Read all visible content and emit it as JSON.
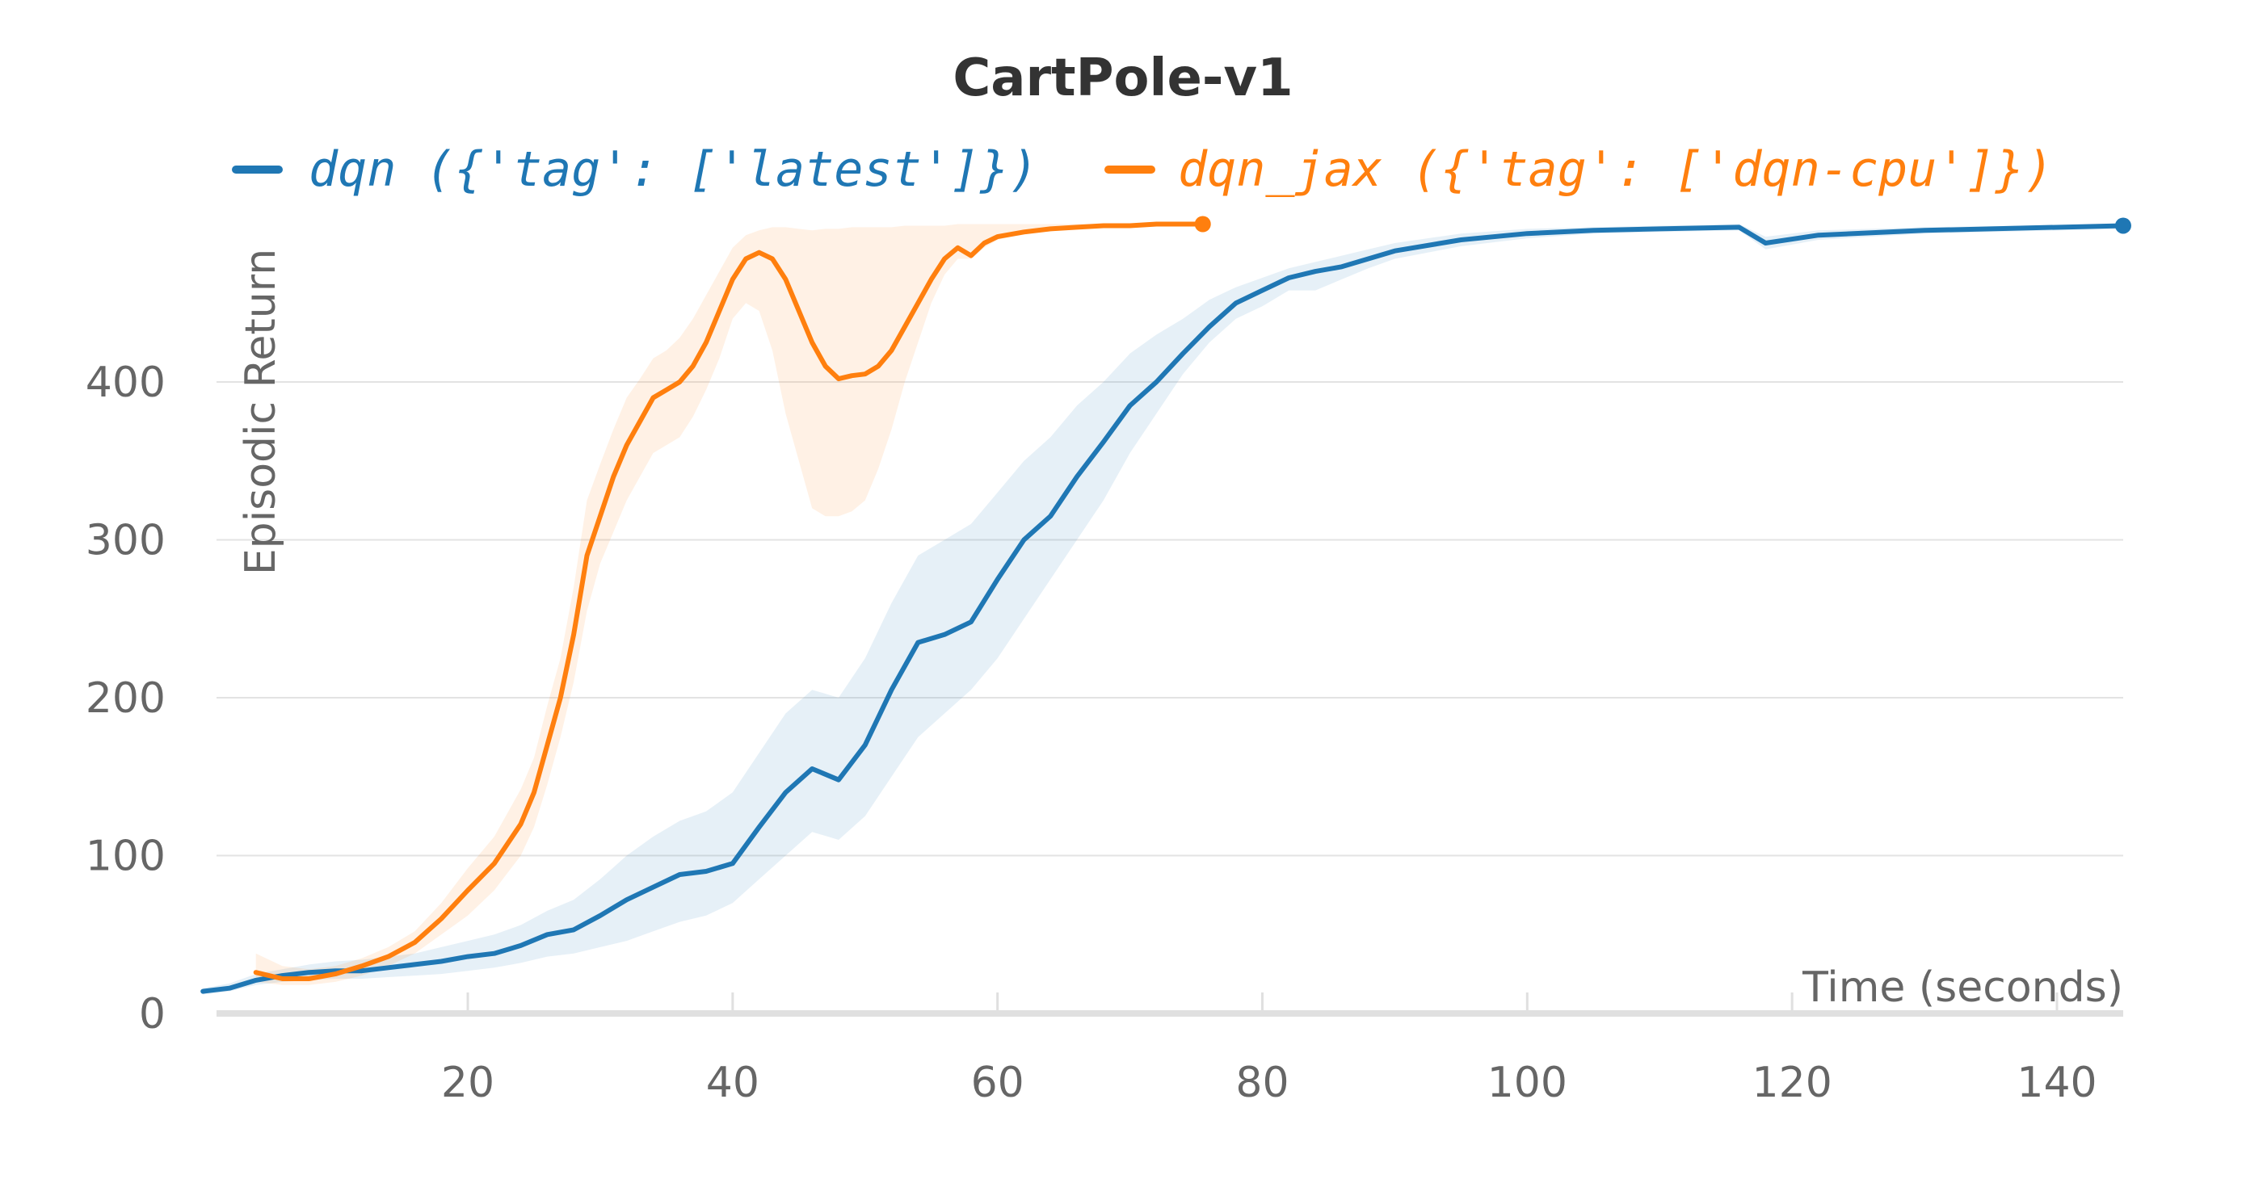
{
  "chart_data": {
    "type": "line",
    "title": "CartPole-v1",
    "xlabel": "Time (seconds)",
    "ylabel": "Episodic Return",
    "xlim": [
      0,
      145
    ],
    "ylim": [
      0,
      500
    ],
    "xticks": [
      20,
      40,
      60,
      80,
      100,
      120,
      140
    ],
    "yticks": [
      0,
      100,
      200,
      300,
      400
    ],
    "grid": true,
    "legend_position": "top",
    "series": [
      {
        "name": "dqn ({'tag': ['latest']})",
        "color": "#1f77b4",
        "band_color": "#1f77b4",
        "x": [
          0,
          2,
          4,
          6,
          8,
          10,
          12,
          14,
          16,
          18,
          20,
          22,
          24,
          26,
          28,
          30,
          32,
          34,
          36,
          38,
          40,
          42,
          44,
          46,
          48,
          50,
          52,
          54,
          56,
          58,
          60,
          62,
          64,
          66,
          68,
          70,
          72,
          74,
          76,
          78,
          80,
          82,
          84,
          86,
          88,
          90,
          95,
          100,
          105,
          110,
          116,
          118,
          122,
          130,
          145
        ],
        "y": [
          14,
          16,
          21,
          24,
          26,
          27,
          27,
          29,
          31,
          33,
          36,
          38,
          43,
          50,
          53,
          62,
          72,
          80,
          88,
          90,
          95,
          118,
          140,
          155,
          148,
          170,
          205,
          235,
          240,
          248,
          275,
          300,
          315,
          340,
          362,
          385,
          400,
          418,
          435,
          450,
          458,
          466,
          470,
          473,
          478,
          483,
          490,
          494,
          496,
          497,
          498,
          488,
          493,
          496,
          499
        ],
        "lower": [
          12,
          14,
          18,
          20,
          21,
          22,
          22,
          23,
          24,
          25,
          27,
          29,
          32,
          36,
          38,
          42,
          46,
          52,
          58,
          62,
          70,
          85,
          100,
          115,
          110,
          125,
          150,
          175,
          190,
          205,
          225,
          250,
          275,
          300,
          325,
          355,
          380,
          405,
          425,
          440,
          448,
          458,
          458,
          465,
          472,
          478,
          486,
          491,
          494,
          495,
          496,
          484,
          490,
          494,
          497
        ],
        "upper": [
          16,
          19,
          25,
          28,
          31,
          33,
          34,
          36,
          38,
          42,
          46,
          50,
          56,
          65,
          72,
          85,
          100,
          112,
          122,
          128,
          140,
          165,
          190,
          205,
          200,
          225,
          260,
          290,
          300,
          310,
          330,
          350,
          365,
          385,
          400,
          418,
          430,
          440,
          452,
          460,
          466,
          472,
          476,
          480,
          484,
          488,
          494,
          497,
          498,
          499,
          500,
          492,
          496,
          498,
          500
        ]
      },
      {
        "name": "dqn_jax ({'tag': ['dqn-cpu']})",
        "color": "#ff7f0e",
        "band_color": "#ff7f0e",
        "x": [
          4,
          6,
          8,
          10,
          12,
          14,
          16,
          18,
          20,
          22,
          24,
          25,
          26,
          27,
          28,
          29,
          30,
          31,
          32,
          33,
          34,
          35,
          36,
          37,
          38,
          39,
          40,
          41,
          42,
          43,
          44,
          45,
          46,
          47,
          48,
          49,
          50,
          51,
          52,
          53,
          54,
          55,
          56,
          57,
          58,
          59,
          60,
          62,
          64,
          66,
          68,
          70,
          72,
          75.5
        ],
        "y": [
          26,
          22,
          22,
          25,
          30,
          36,
          45,
          60,
          78,
          95,
          120,
          140,
          170,
          200,
          240,
          290,
          315,
          340,
          360,
          375,
          390,
          395,
          400,
          410,
          425,
          445,
          465,
          478,
          482,
          478,
          465,
          445,
          425,
          410,
          402,
          404,
          405,
          410,
          420,
          435,
          450,
          465,
          478,
          485,
          480,
          488,
          492,
          495,
          497,
          498,
          499,
          499,
          500,
          500
        ],
        "lower": [
          20,
          18,
          18,
          20,
          24,
          30,
          38,
          50,
          62,
          78,
          100,
          118,
          145,
          175,
          210,
          255,
          285,
          305,
          325,
          340,
          355,
          360,
          365,
          378,
          395,
          415,
          440,
          450,
          445,
          420,
          380,
          350,
          320,
          315,
          315,
          318,
          325,
          345,
          370,
          400,
          425,
          450,
          468,
          478,
          478,
          485,
          490,
          494,
          496,
          497,
          498,
          499,
          499,
          500
        ],
        "upper": [
          38,
          30,
          28,
          30,
          35,
          42,
          52,
          70,
          92,
          112,
          142,
          162,
          195,
          225,
          270,
          325,
          348,
          370,
          390,
          402,
          415,
          420,
          428,
          440,
          455,
          470,
          485,
          493,
          496,
          498,
          498,
          497,
          496,
          497,
          497,
          498,
          498,
          498,
          498,
          499,
          499,
          499,
          499,
          500,
          500,
          500,
          500,
          500,
          500,
          500,
          500,
          500,
          500,
          500
        ]
      }
    ]
  }
}
